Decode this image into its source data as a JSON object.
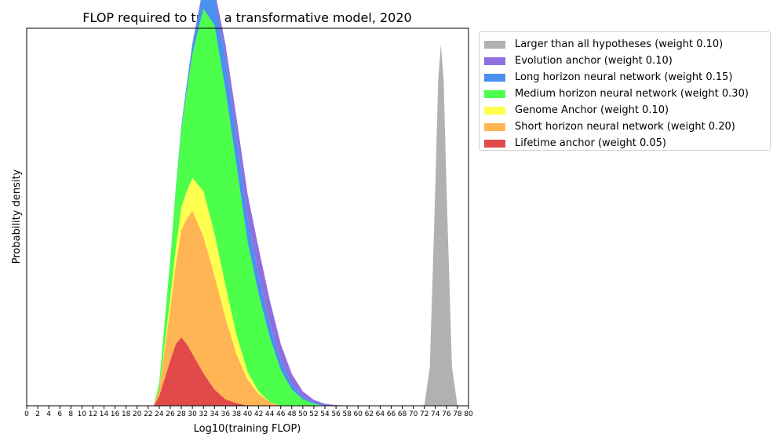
{
  "chart_data": {
    "type": "area",
    "title": "FLOP required to train a transformative model, 2020",
    "xlabel": "Log10(training FLOP)",
    "ylabel": "Probability density",
    "xlim": [
      0,
      80
    ],
    "x_ticks": [
      "0",
      "2",
      "4",
      "6",
      "8",
      "10",
      "12",
      "14",
      "16",
      "18",
      "20",
      "22",
      "24",
      "26",
      "28",
      "30",
      "32",
      "34",
      "36",
      "38",
      "40",
      "42",
      "44",
      "46",
      "48",
      "50",
      "52",
      "54",
      "56",
      "58",
      "60",
      "62",
      "64",
      "66",
      "68",
      "70",
      "72",
      "74",
      "76",
      "78",
      "80"
    ],
    "grid": false,
    "legend_position": "outside-right",
    "stacked": true,
    "series": [
      {
        "name": "Lifetime anchor (weight 0.05)",
        "color": "#e24a4a",
        "x": [
          23,
          24,
          26,
          27,
          28,
          29,
          30,
          32,
          34,
          36,
          38,
          40
        ],
        "y": [
          0,
          0.015,
          0.07,
          0.095,
          0.105,
          0.095,
          0.08,
          0.05,
          0.025,
          0.01,
          0.004,
          0
        ]
      },
      {
        "name": "Short horizon neural network (weight 0.20)",
        "color": "#ffb554",
        "x": [
          23,
          24,
          26,
          28,
          30,
          32,
          34,
          36,
          38,
          40,
          42,
          44,
          46
        ],
        "y": [
          0,
          0.01,
          0.08,
          0.165,
          0.22,
          0.21,
          0.175,
          0.125,
          0.075,
          0.04,
          0.018,
          0.006,
          0
        ]
      },
      {
        "name": "Genome Anchor (weight 0.10)",
        "color": "#ffff4f",
        "x": [
          24,
          26,
          28,
          30,
          32,
          34,
          36,
          38,
          40,
          42,
          44
        ],
        "y": [
          0,
          0.015,
          0.035,
          0.05,
          0.07,
          0.065,
          0.05,
          0.03,
          0.012,
          0.004,
          0
        ]
      },
      {
        "name": "Medium horizon neural network (weight 0.30)",
        "color": "#4bff4b",
        "x": [
          23,
          24,
          26,
          28,
          30,
          32,
          34,
          36,
          38,
          40,
          42,
          44,
          46,
          48,
          50,
          52,
          54
        ],
        "y": [
          0,
          0.01,
          0.06,
          0.12,
          0.19,
          0.28,
          0.32,
          0.3,
          0.26,
          0.2,
          0.15,
          0.1,
          0.055,
          0.025,
          0.01,
          0.003,
          0
        ]
      },
      {
        "name": "Long horizon neural network (weight 0.15)",
        "color": "#4a90f0",
        "x": [
          26,
          28,
          30,
          32,
          34,
          36,
          38,
          40,
          42,
          44,
          46,
          48,
          50,
          52,
          54,
          56
        ],
        "y": [
          0,
          0.005,
          0.015,
          0.03,
          0.045,
          0.05,
          0.045,
          0.038,
          0.03,
          0.022,
          0.015,
          0.009,
          0.004,
          0.002,
          0.001,
          0
        ]
      },
      {
        "name": "Evolution anchor (weight 0.10)",
        "color": "#8f6fe0",
        "x": [
          28,
          30,
          32,
          34,
          36,
          38,
          40,
          42,
          44,
          46,
          48,
          50,
          52,
          54,
          56,
          58,
          60
        ],
        "y": [
          0,
          0.002,
          0.005,
          0.01,
          0.02,
          0.028,
          0.035,
          0.04,
          0.035,
          0.025,
          0.015,
          0.008,
          0.004,
          0.002,
          0.001,
          0.0005,
          0
        ]
      },
      {
        "name": "Larger than all hypotheses (weight 0.10)",
        "color": "#b1b2b0",
        "x": [
          72,
          73,
          74,
          74.5,
          75,
          75.5,
          76,
          77,
          78
        ],
        "y": [
          0,
          0.06,
          0.34,
          0.5,
          0.555,
          0.5,
          0.34,
          0.06,
          0
        ]
      }
    ],
    "legend_order": [
      6,
      5,
      4,
      3,
      2,
      1,
      0
    ]
  }
}
